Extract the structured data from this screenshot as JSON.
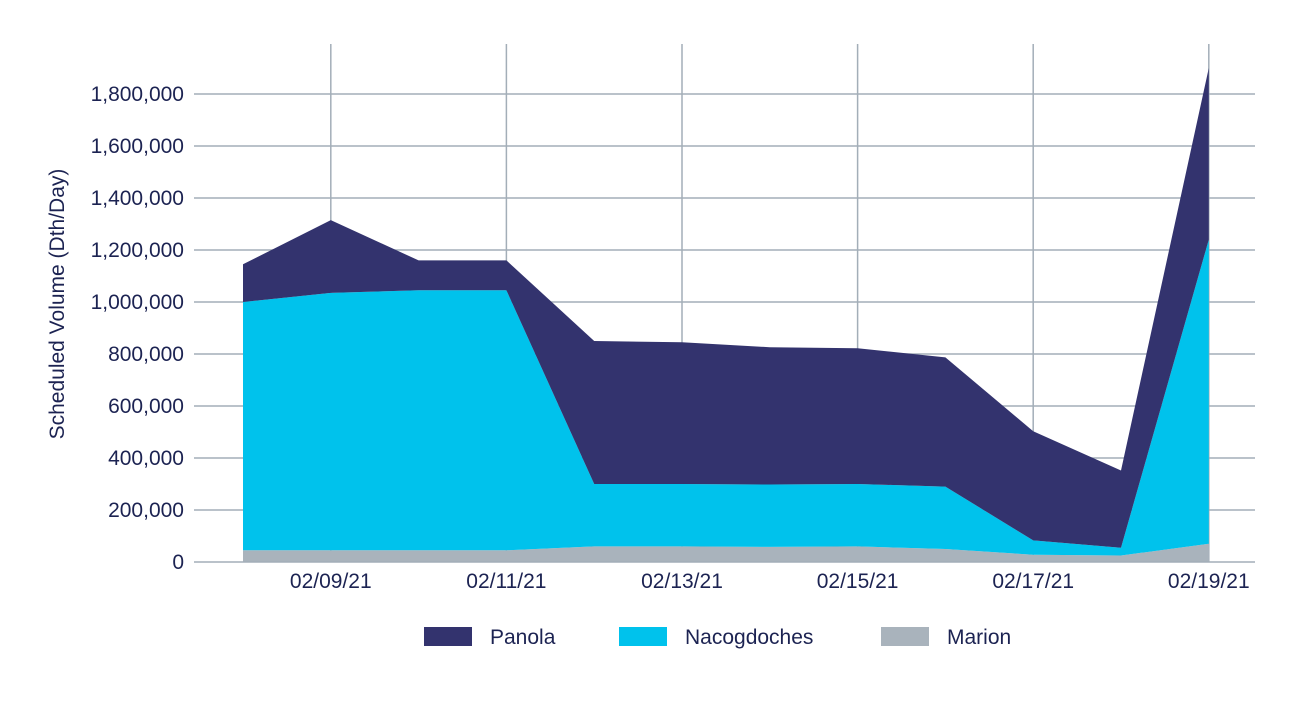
{
  "chart_data": {
    "type": "area",
    "stacked": true,
    "title": "",
    "xlabel": "",
    "ylabel": "Scheduled Volume (Dth/Day)",
    "x": [
      "02/08/21",
      "02/09/21",
      "02/10/21",
      "02/11/21",
      "02/12/21",
      "02/13/21",
      "02/14/21",
      "02/15/21",
      "02/16/21",
      "02/17/21",
      "02/18/21",
      "02/19/21"
    ],
    "x_tick_labels": [
      "02/09/21",
      "02/11/21",
      "02/13/21",
      "02/15/21",
      "02/17/21",
      "02/19/21"
    ],
    "ylim": [
      0,
      2000000
    ],
    "y_ticks": [
      0,
      200000,
      400000,
      600000,
      800000,
      1000000,
      1200000,
      1400000,
      1600000,
      1800000
    ],
    "y_tick_labels": [
      "0",
      "200,000",
      "400,000",
      "600,000",
      "800,000",
      "1,000,000",
      "1,200,000",
      "1,400,000",
      "1,600,000",
      "1,800,000"
    ],
    "grid": true,
    "legend_position": "bottom",
    "series": [
      {
        "name": "Marion",
        "color": "#a9b3bc",
        "values": [
          45000,
          45000,
          45000,
          45000,
          60000,
          60000,
          58000,
          60000,
          50000,
          28000,
          25000,
          70000
        ]
      },
      {
        "name": "Nacogdoches",
        "color": "#00c2ec",
        "values": [
          955000,
          990000,
          1000000,
          1000000,
          240000,
          240000,
          240000,
          240000,
          240000,
          55000,
          30000,
          1170000
        ]
      },
      {
        "name": "Panola",
        "color": "#33336e",
        "values": [
          145000,
          280000,
          115000,
          115000,
          550000,
          545000,
          528000,
          522000,
          497000,
          420000,
          297000,
          660000
        ]
      }
    ],
    "legend": [
      "Panola",
      "Nacogdoches",
      "Marion"
    ]
  }
}
